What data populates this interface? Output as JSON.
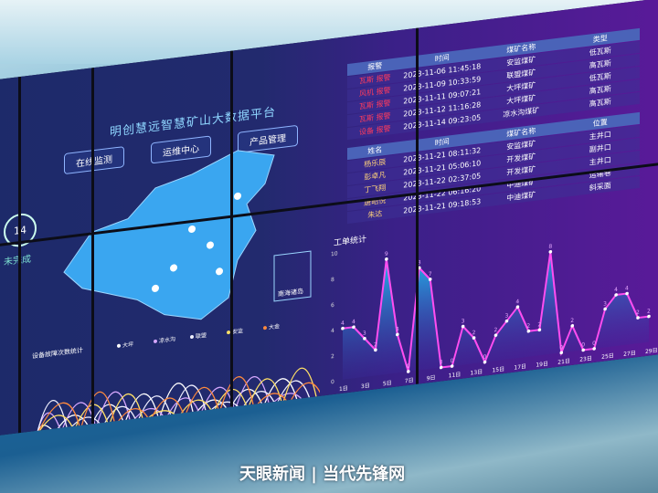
{
  "dashboard": {
    "title": "明创慧远智慧矿山大数据平台",
    "nav": [
      "在线监测",
      "运维中心",
      "产品管理"
    ],
    "left_panel": {
      "count": "14",
      "count_label": "未完成"
    },
    "alarm_table": {
      "headers": [
        "报警",
        "时间",
        "煤矿名称",
        "类型"
      ],
      "rows": [
        [
          "瓦斯 报警",
          "2023-11-06 11:45:18",
          "安监煤矿",
          "低瓦斯"
        ],
        [
          "风机 报警",
          "2023-11-09 10:33:59",
          "联盟煤矿",
          "高瓦斯"
        ],
        [
          "瓦斯 报警",
          "2023-11-11 09:07:21",
          "大坪煤矿",
          "低瓦斯"
        ],
        [
          "瓦斯 报警",
          "2023-11-12 11:16:28",
          "大坪煤矿",
          "高瓦斯"
        ],
        [
          "设备 报警",
          "2023-11-14 09:23:05",
          "凉水沟煤矿",
          "高瓦斯"
        ]
      ]
    },
    "personnel_table": {
      "headers": [
        "姓名",
        "时间",
        "煤矿名称",
        "位置"
      ],
      "rows": [
        [
          "杨乐辰",
          "2023-11-21 08:11:32",
          "安监煤矿",
          "主井口"
        ],
        [
          "彭卓凡",
          "2023-11-21 05:06:10",
          "开发煤矿",
          "副井口"
        ],
        [
          "丁飞翔",
          "2023-11-22 02:37:05",
          "开发煤矿",
          "主井口"
        ],
        [
          "唐昭悦",
          "2023-11-22 06:16:20",
          "中迪煤矿",
          "运输巷"
        ],
        [
          "朱达",
          "2023-11-21 09:18:53",
          "中迪煤矿",
          "斜采面"
        ]
      ]
    },
    "legend_lines": [
      "大坪",
      "凉水沟",
      "联盟",
      "安监",
      "大金"
    ],
    "left_chart_title": "设备故障次数统计",
    "map_box_label": "南海诸岛",
    "watermark": "天眼新闻 | 当代先锋网"
  },
  "chart_data": [
    {
      "type": "area",
      "title": "工单统计",
      "x": [
        "1日",
        "2日",
        "3日",
        "4日",
        "5日",
        "6日",
        "7日",
        "8日",
        "9日",
        "10日",
        "11日",
        "12日",
        "13日",
        "14日",
        "15日",
        "16日",
        "17日",
        "18日",
        "19日",
        "20日",
        "21日",
        "22日",
        "23日",
        "24日",
        "25日",
        "26日",
        "27日",
        "28日",
        "29日"
      ],
      "x_tick_labels": [
        "1日",
        "3日",
        "5日",
        "7日",
        "9日",
        "11日",
        "13日",
        "15日",
        "17日",
        "19日",
        "21日",
        "23日",
        "25日",
        "27日",
        "29日"
      ],
      "values": [
        4,
        4,
        3,
        2,
        9,
        3,
        0,
        8,
        7,
        0,
        0,
        3,
        2,
        0,
        2,
        3,
        4,
        2,
        2,
        8,
        0,
        2,
        0,
        0,
        3,
        4,
        4,
        2,
        2
      ],
      "ylim": [
        0,
        10
      ],
      "y_ticks": [
        0,
        2,
        4,
        6,
        8,
        10
      ],
      "colors": {
        "line": "#ff4df0",
        "fill_top": "#22b8f0",
        "fill_bottom": "#3a2a9a"
      }
    },
    {
      "type": "line",
      "x_tick_labels": [
        "1日",
        "3日",
        "5日",
        "7日",
        "9日",
        "11日",
        "13日",
        "15日",
        "17日",
        "19日",
        "21日",
        "23日",
        "25日",
        "27日",
        "29日"
      ],
      "series": [
        {
          "name": "大坪",
          "color": "#ffffff"
        },
        {
          "name": "凉水沟",
          "color": "#d6a7ff"
        },
        {
          "name": "联盟",
          "color": "#f0f0ff"
        },
        {
          "name": "安监",
          "color": "#ffe066"
        },
        {
          "name": "大金",
          "color": "#ff8a3d"
        }
      ]
    }
  ]
}
